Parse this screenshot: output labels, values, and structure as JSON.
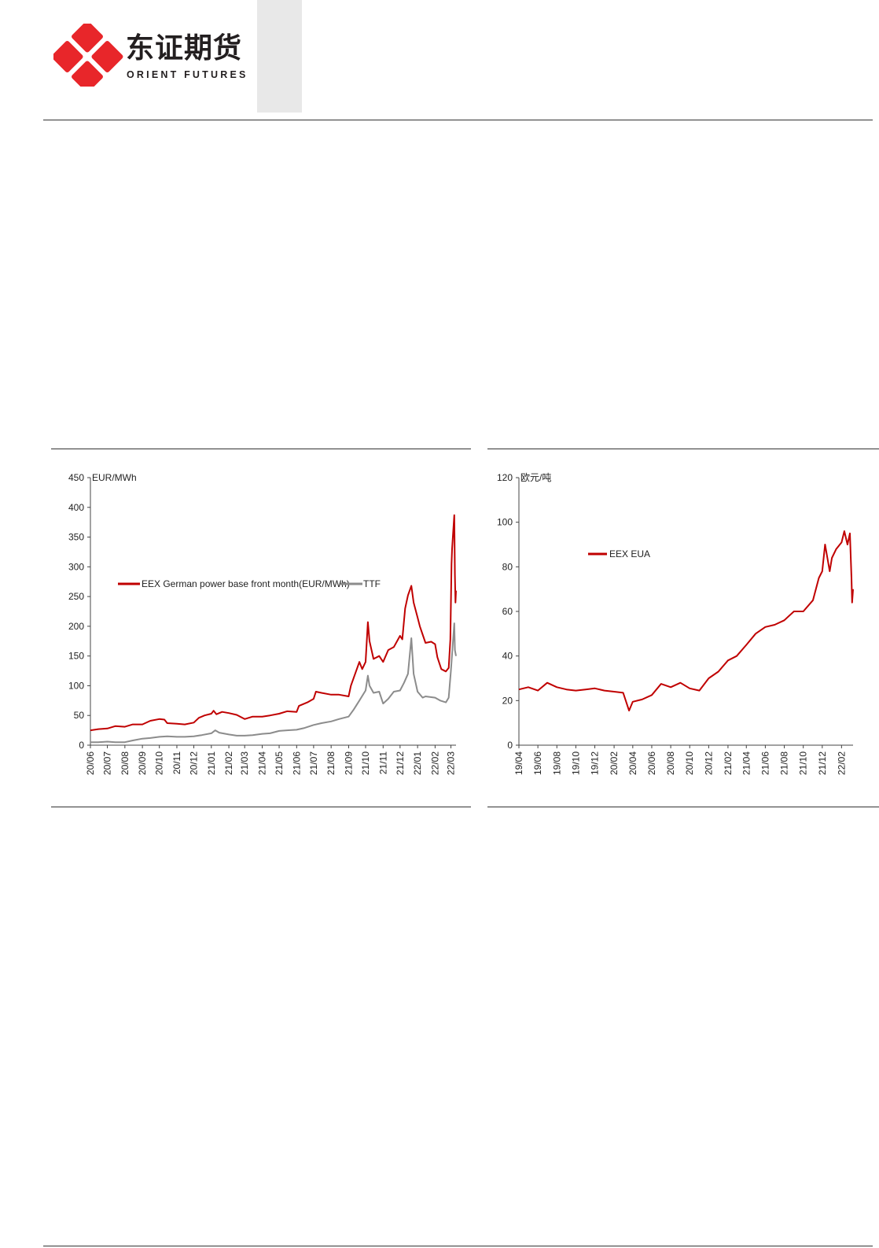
{
  "header": {
    "logo_cn": "东证期货",
    "logo_en": "ORIENT FUTURES",
    "brand_color": "#e8262a"
  },
  "chart_data": [
    {
      "type": "line",
      "unit_label": "EUR/MWh",
      "ylim": [
        0,
        450
      ],
      "yticks": [
        0,
        50,
        100,
        150,
        200,
        250,
        300,
        350,
        400,
        450
      ],
      "x_range": [
        "2020-06-01",
        "2022-03-10"
      ],
      "x_tick_labels": [
        "20/06",
        "20/07",
        "20/08",
        "20/09",
        "20/10",
        "20/11",
        "20/12",
        "21/01",
        "21/02",
        "21/03",
        "21/04",
        "21/05",
        "21/06",
        "21/07",
        "21/08",
        "21/09",
        "21/10",
        "21/11",
        "21/12",
        "22/01",
        "22/02",
        "22/03"
      ],
      "legend_placement": "top-center",
      "grid": false,
      "series": [
        {
          "name": "EEX German power base front month(EUR/MWh)",
          "color": "#c00000",
          "points": [
            [
              "2020-06-01",
              25
            ],
            [
              "2020-06-15",
              27
            ],
            [
              "2020-07-01",
              28
            ],
            [
              "2020-07-15",
              32
            ],
            [
              "2020-08-01",
              31
            ],
            [
              "2020-08-15",
              35
            ],
            [
              "2020-09-01",
              35
            ],
            [
              "2020-09-15",
              41
            ],
            [
              "2020-10-01",
              44
            ],
            [
              "2020-10-10",
              43
            ],
            [
              "2020-10-15",
              37
            ],
            [
              "2020-11-01",
              36
            ],
            [
              "2020-11-15",
              35
            ],
            [
              "2020-12-01",
              38
            ],
            [
              "2020-12-10",
              46
            ],
            [
              "2020-12-20",
              50
            ],
            [
              "2021-01-01",
              53
            ],
            [
              "2021-01-05",
              58
            ],
            [
              "2021-01-10",
              52
            ],
            [
              "2021-01-20",
              56
            ],
            [
              "2021-02-01",
              54
            ],
            [
              "2021-02-15",
              51
            ],
            [
              "2021-03-01",
              44
            ],
            [
              "2021-03-15",
              48
            ],
            [
              "2021-04-01",
              48
            ],
            [
              "2021-04-15",
              50
            ],
            [
              "2021-05-01",
              53
            ],
            [
              "2021-05-15",
              57
            ],
            [
              "2021-06-01",
              56
            ],
            [
              "2021-06-05",
              66
            ],
            [
              "2021-06-20",
              72
            ],
            [
              "2021-07-01",
              78
            ],
            [
              "2021-07-05",
              90
            ],
            [
              "2021-07-15",
              88
            ],
            [
              "2021-08-01",
              85
            ],
            [
              "2021-08-15",
              85
            ],
            [
              "2021-09-01",
              82
            ],
            [
              "2021-09-05",
              100
            ],
            [
              "2021-09-20",
              140
            ],
            [
              "2021-09-25",
              128
            ],
            [
              "2021-10-01",
              140
            ],
            [
              "2021-10-05",
              207
            ],
            [
              "2021-10-08",
              175
            ],
            [
              "2021-10-15",
              145
            ],
            [
              "2021-10-25",
              150
            ],
            [
              "2021-11-01",
              140
            ],
            [
              "2021-11-10",
              160
            ],
            [
              "2021-11-20",
              165
            ],
            [
              "2021-12-01",
              184
            ],
            [
              "2021-12-05",
              178
            ],
            [
              "2021-12-10",
              230
            ],
            [
              "2021-12-15",
              252
            ],
            [
              "2021-12-21",
              268
            ],
            [
              "2021-12-25",
              240
            ],
            [
              "2022-01-01",
              215
            ],
            [
              "2022-01-05",
              200
            ],
            [
              "2022-01-10",
              186
            ],
            [
              "2022-01-15",
              172
            ],
            [
              "2022-01-25",
              174
            ],
            [
              "2022-02-01",
              170
            ],
            [
              "2022-02-05",
              148
            ],
            [
              "2022-02-12",
              128
            ],
            [
              "2022-02-20",
              124
            ],
            [
              "2022-02-25",
              130
            ],
            [
              "2022-02-28",
              178
            ],
            [
              "2022-03-02",
              305
            ],
            [
              "2022-03-03",
              330
            ],
            [
              "2022-03-07",
              387
            ],
            [
              "2022-03-08",
              286
            ],
            [
              "2022-03-09",
              240
            ],
            [
              "2022-03-10",
              260
            ]
          ]
        },
        {
          "name": "TTF",
          "color": "#8c8c8c",
          "points": [
            [
              "2020-06-01",
              5
            ],
            [
              "2020-06-15",
              5
            ],
            [
              "2020-07-01",
              6
            ],
            [
              "2020-07-15",
              5
            ],
            [
              "2020-08-01",
              5
            ],
            [
              "2020-08-15",
              8
            ],
            [
              "2020-09-01",
              11
            ],
            [
              "2020-09-15",
              12
            ],
            [
              "2020-10-01",
              14
            ],
            [
              "2020-10-15",
              15
            ],
            [
              "2020-11-01",
              14
            ],
            [
              "2020-11-15",
              14
            ],
            [
              "2020-12-01",
              15
            ],
            [
              "2020-12-15",
              17
            ],
            [
              "2021-01-01",
              20
            ],
            [
              "2021-01-08",
              25
            ],
            [
              "2021-01-15",
              21
            ],
            [
              "2021-02-01",
              18
            ],
            [
              "2021-02-15",
              16
            ],
            [
              "2021-03-01",
              16
            ],
            [
              "2021-03-15",
              17
            ],
            [
              "2021-04-01",
              19
            ],
            [
              "2021-04-15",
              20
            ],
            [
              "2021-05-01",
              24
            ],
            [
              "2021-05-15",
              25
            ],
            [
              "2021-06-01",
              26
            ],
            [
              "2021-06-15",
              29
            ],
            [
              "2021-07-01",
              34
            ],
            [
              "2021-07-15",
              37
            ],
            [
              "2021-08-01",
              40
            ],
            [
              "2021-08-15",
              44
            ],
            [
              "2021-09-01",
              48
            ],
            [
              "2021-09-10",
              60
            ],
            [
              "2021-09-20",
              75
            ],
            [
              "2021-10-01",
              92
            ],
            [
              "2021-10-05",
              117
            ],
            [
              "2021-10-08",
              100
            ],
            [
              "2021-10-15",
              88
            ],
            [
              "2021-10-25",
              90
            ],
            [
              "2021-11-01",
              70
            ],
            [
              "2021-11-10",
              78
            ],
            [
              "2021-11-20",
              90
            ],
            [
              "2021-12-01",
              92
            ],
            [
              "2021-12-08",
              105
            ],
            [
              "2021-12-15",
              120
            ],
            [
              "2021-12-21",
              180
            ],
            [
              "2021-12-25",
              120
            ],
            [
              "2022-01-01",
              90
            ],
            [
              "2022-01-10",
              80
            ],
            [
              "2022-01-15",
              82
            ],
            [
              "2022-02-01",
              80
            ],
            [
              "2022-02-10",
              75
            ],
            [
              "2022-02-20",
              72
            ],
            [
              "2022-02-25",
              80
            ],
            [
              "2022-03-01",
              125
            ],
            [
              "2022-03-07",
              205
            ],
            [
              "2022-03-08",
              160
            ],
            [
              "2022-03-10",
              150
            ]
          ]
        }
      ]
    },
    {
      "type": "line",
      "unit_label": "欧元/吨",
      "ylim": [
        0,
        120
      ],
      "yticks": [
        0,
        20,
        40,
        60,
        80,
        100,
        120
      ],
      "x_range": [
        "2019-04-01",
        "2022-03-10"
      ],
      "x_tick_labels": [
        "19/04",
        "19/06",
        "19/08",
        "19/10",
        "19/12",
        "20/02",
        "20/04",
        "20/06",
        "20/08",
        "20/10",
        "20/12",
        "21/02",
        "21/04",
        "21/06",
        "21/08",
        "21/10",
        "21/12",
        "22/02"
      ],
      "legend_placement": "top-center",
      "grid": false,
      "series": [
        {
          "name": "EEX EUA",
          "color": "#c00000",
          "points": [
            [
              "2019-04-01",
              25
            ],
            [
              "2019-05-01",
              26
            ],
            [
              "2019-06-01",
              24.5
            ],
            [
              "2019-07-01",
              28
            ],
            [
              "2019-08-01",
              26
            ],
            [
              "2019-09-01",
              25
            ],
            [
              "2019-10-01",
              24.5
            ],
            [
              "2019-11-01",
              25
            ],
            [
              "2019-12-01",
              25.5
            ],
            [
              "2020-01-01",
              24.5
            ],
            [
              "2020-02-01",
              24
            ],
            [
              "2020-03-01",
              23.5
            ],
            [
              "2020-03-20",
              15.5
            ],
            [
              "2020-04-01",
              19.5
            ],
            [
              "2020-05-01",
              20.5
            ],
            [
              "2020-06-01",
              22.5
            ],
            [
              "2020-07-01",
              27.5
            ],
            [
              "2020-08-01",
              26
            ],
            [
              "2020-09-01",
              28
            ],
            [
              "2020-10-01",
              25.5
            ],
            [
              "2020-11-01",
              24.5
            ],
            [
              "2020-12-01",
              30
            ],
            [
              "2021-01-01",
              33
            ],
            [
              "2021-02-01",
              38
            ],
            [
              "2021-03-01",
              40
            ],
            [
              "2021-04-01",
              45
            ],
            [
              "2021-05-01",
              50
            ],
            [
              "2021-06-01",
              53
            ],
            [
              "2021-07-01",
              54
            ],
            [
              "2021-08-01",
              56
            ],
            [
              "2021-09-01",
              60
            ],
            [
              "2021-10-01",
              60
            ],
            [
              "2021-11-01",
              65
            ],
            [
              "2021-11-20",
              75
            ],
            [
              "2021-12-01",
              78
            ],
            [
              "2021-12-10",
              90
            ],
            [
              "2021-12-25",
              78
            ],
            [
              "2022-01-01",
              84
            ],
            [
              "2022-01-15",
              88
            ],
            [
              "2022-02-01",
              91
            ],
            [
              "2022-02-10",
              96
            ],
            [
              "2022-02-20",
              90
            ],
            [
              "2022-02-28",
              95
            ],
            [
              "2022-03-05",
              75
            ],
            [
              "2022-03-07",
              64
            ],
            [
              "2022-03-10",
              70
            ]
          ]
        }
      ]
    }
  ]
}
